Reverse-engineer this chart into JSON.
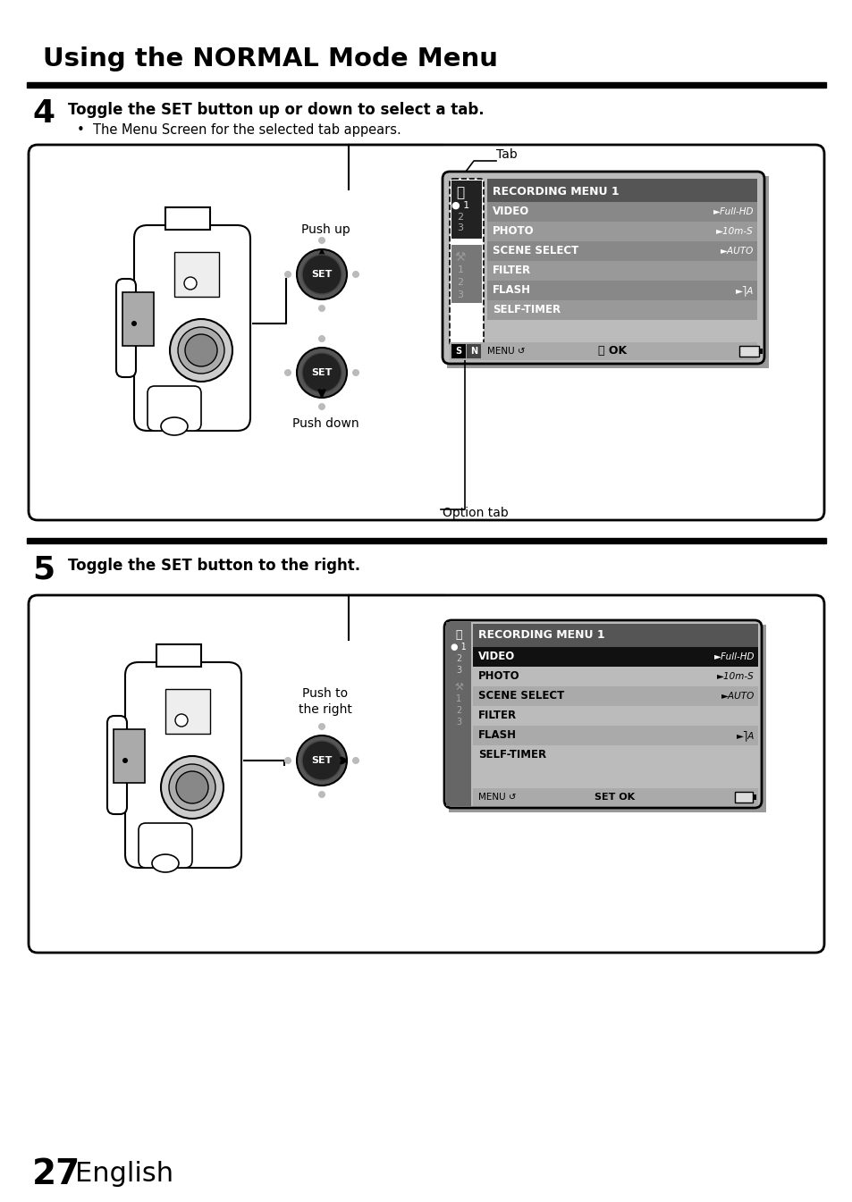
{
  "title": "Using the NORMAL Mode Menu",
  "bg_color": "#ffffff",
  "step4_number": "4",
  "step4_text": "Toggle the SET button up or down to select a tab.",
  "step4_bullet": "The Menu Screen for the selected tab appears.",
  "step5_number": "5",
  "step5_text": "Toggle the SET button to the right.",
  "footer_number": "27",
  "footer_text": "English",
  "menu_title": "RECORDING MENU 1",
  "menu_items": [
    "VIDEO",
    "PHOTO",
    "SCENE SELECT",
    "FILTER",
    "FLASH",
    "SELF-TIMER"
  ],
  "menu_values": [
    "►Full-HD",
    "►10m-S",
    "►AUTO",
    "►",
    "►⎤A",
    "►"
  ],
  "tab_label": "Tab",
  "option_tab_label": "Option tab",
  "push_up_label": "Push up",
  "push_down_label": "Push down",
  "push_right_label1": "Push to",
  "push_right_label2": "the right"
}
